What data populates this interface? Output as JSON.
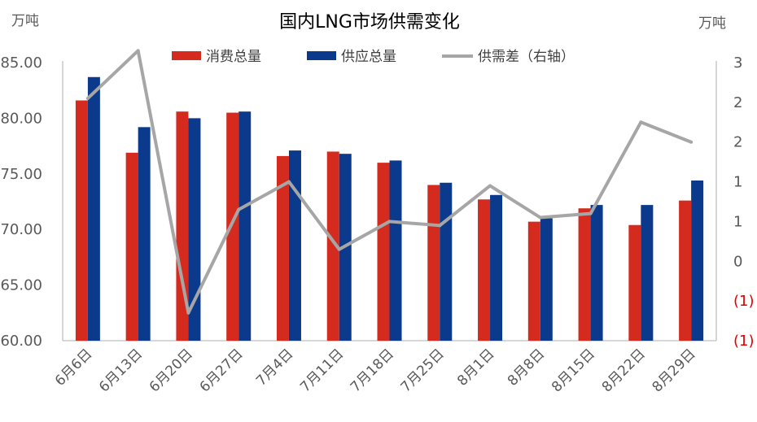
{
  "chart_data": {
    "type": "bar",
    "title": "国内LNG市场供需变化",
    "left_unit": "万吨",
    "right_unit": "万吨",
    "categories": [
      "6月6日",
      "6月13日",
      "6月20日",
      "6月27日",
      "7月4日",
      "7月11日",
      "7月18日",
      "7月25日",
      "8月1日",
      "8月8日",
      "8月15日",
      "8月22日",
      "8月29日"
    ],
    "series": [
      {
        "name": "消费总量",
        "type": "bar",
        "axis": "left",
        "color": "#d52b1e",
        "values": [
          81.6,
          76.9,
          80.6,
          80.5,
          76.6,
          77.0,
          76.0,
          74.0,
          72.7,
          70.7,
          71.9,
          70.4,
          72.6
        ]
      },
      {
        "name": "供应总量",
        "type": "bar",
        "axis": "left",
        "color": "#0b3a8c",
        "values": [
          83.7,
          79.2,
          80.0,
          80.6,
          77.1,
          76.8,
          76.2,
          74.2,
          73.1,
          71.0,
          72.2,
          72.2,
          74.4
        ]
      },
      {
        "name": "供需差（右轴）",
        "type": "line",
        "axis": "right",
        "color": "#a6a6a6",
        "values": [
          2.05,
          2.65,
          -0.65,
          0.65,
          1.0,
          0.15,
          0.5,
          0.45,
          0.95,
          0.55,
          0.6,
          1.75,
          1.5
        ]
      }
    ],
    "left_axis": {
      "min": 60,
      "max": 85,
      "ticks": [
        "85.00",
        "80.00",
        "75.00",
        "70.00",
        "65.00",
        "60.00"
      ]
    },
    "right_axis": {
      "min": -1,
      "max": 2.5,
      "ticks": [
        "3",
        "2",
        "2",
        "1",
        "1",
        "0",
        "(1)",
        "(1)"
      ]
    },
    "legend_position": "top",
    "grid": false
  }
}
